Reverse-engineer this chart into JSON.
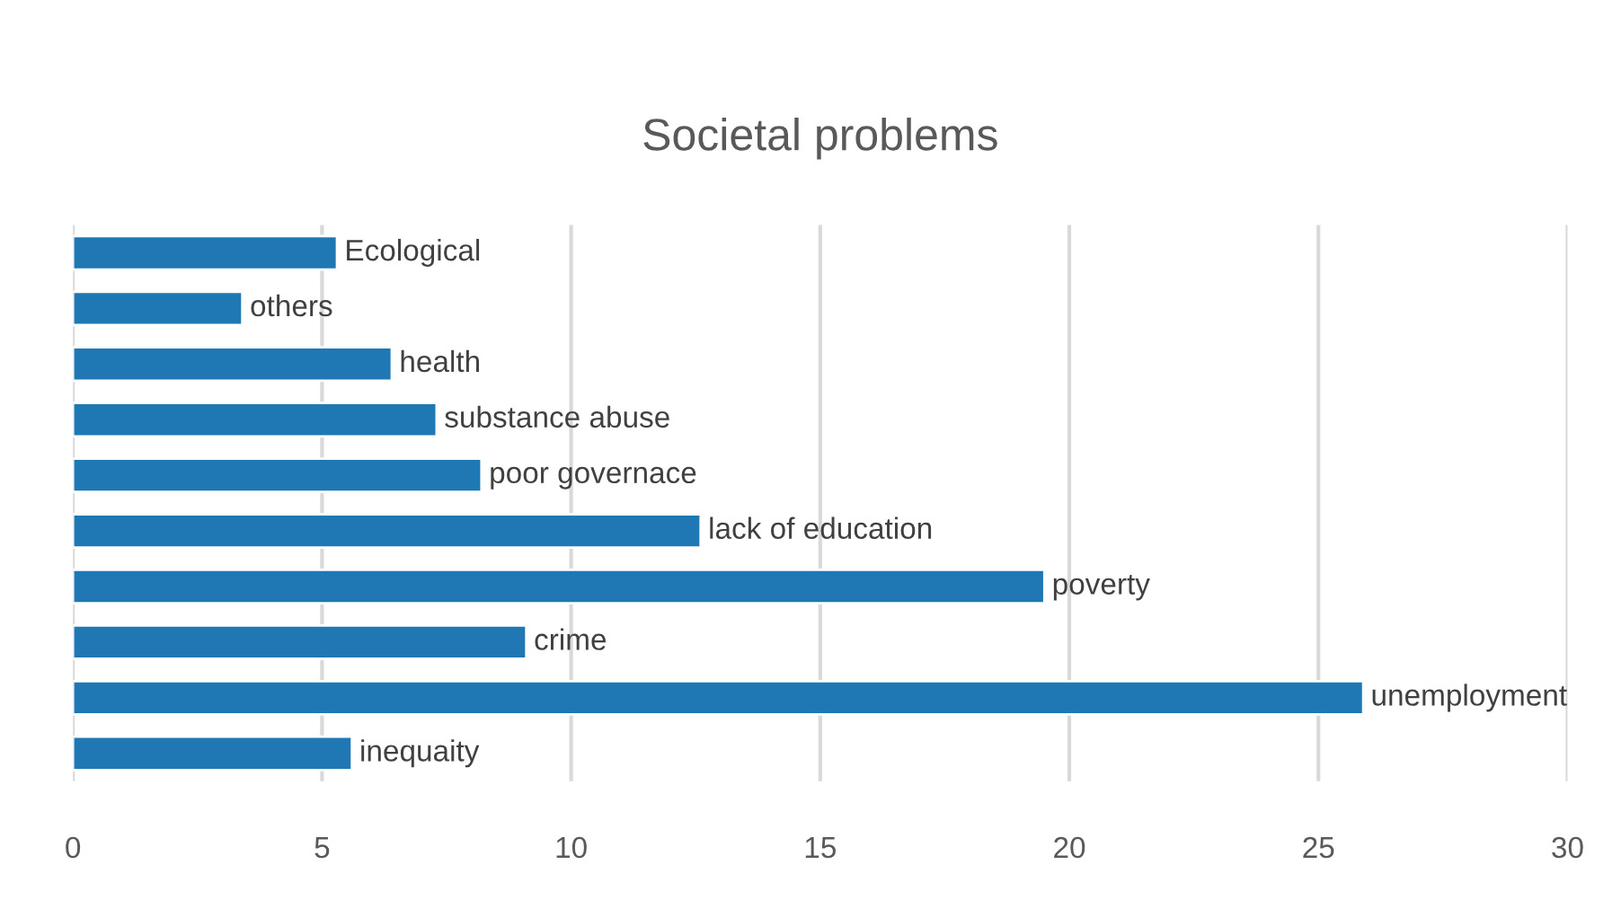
{
  "chart_data": {
    "type": "bar",
    "orientation": "horizontal",
    "title": "Societal problems",
    "categories": [
      "Ecological",
      "others",
      "health",
      "substance abuse",
      "poor governace",
      "lack of education",
      "poverty",
      "crime",
      "unemployment",
      "inequaity"
    ],
    "values": [
      5.3,
      3.4,
      6.4,
      7.3,
      8.2,
      12.6,
      19.5,
      9.1,
      25.9,
      5.6
    ],
    "color": null,
    "xlim": [
      0,
      30
    ],
    "xticks": [
      0,
      5,
      10,
      15,
      20,
      25,
      30
    ],
    "grid": "x",
    "tick_labels": "x",
    "legend": false
  }
}
